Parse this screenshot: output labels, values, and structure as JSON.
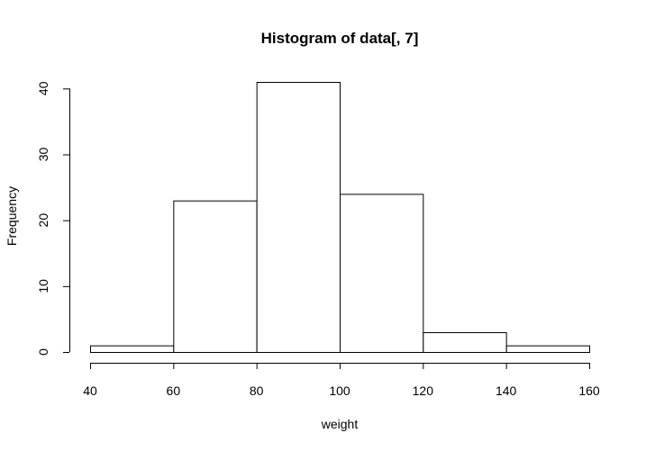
{
  "chart_data": {
    "type": "bar",
    "title": "Histogram of data[, 7]",
    "xlabel": "weight",
    "ylabel": "Frequency",
    "bins": [
      {
        "from": 40,
        "to": 60,
        "count": 1
      },
      {
        "from": 60,
        "to": 80,
        "count": 23
      },
      {
        "from": 80,
        "to": 100,
        "count": 41
      },
      {
        "from": 100,
        "to": 120,
        "count": 24
      },
      {
        "from": 120,
        "to": 140,
        "count": 3
      },
      {
        "from": 140,
        "to": 160,
        "count": 1
      }
    ],
    "xlim": [
      40,
      160
    ],
    "ylim": [
      0,
      41
    ],
    "x_ticks": [
      40,
      60,
      80,
      100,
      120,
      140,
      160
    ],
    "y_ticks": [
      0,
      10,
      20,
      30,
      40
    ],
    "grid": false,
    "bar_fill": "#ffffff",
    "bar_stroke": "#000000"
  }
}
